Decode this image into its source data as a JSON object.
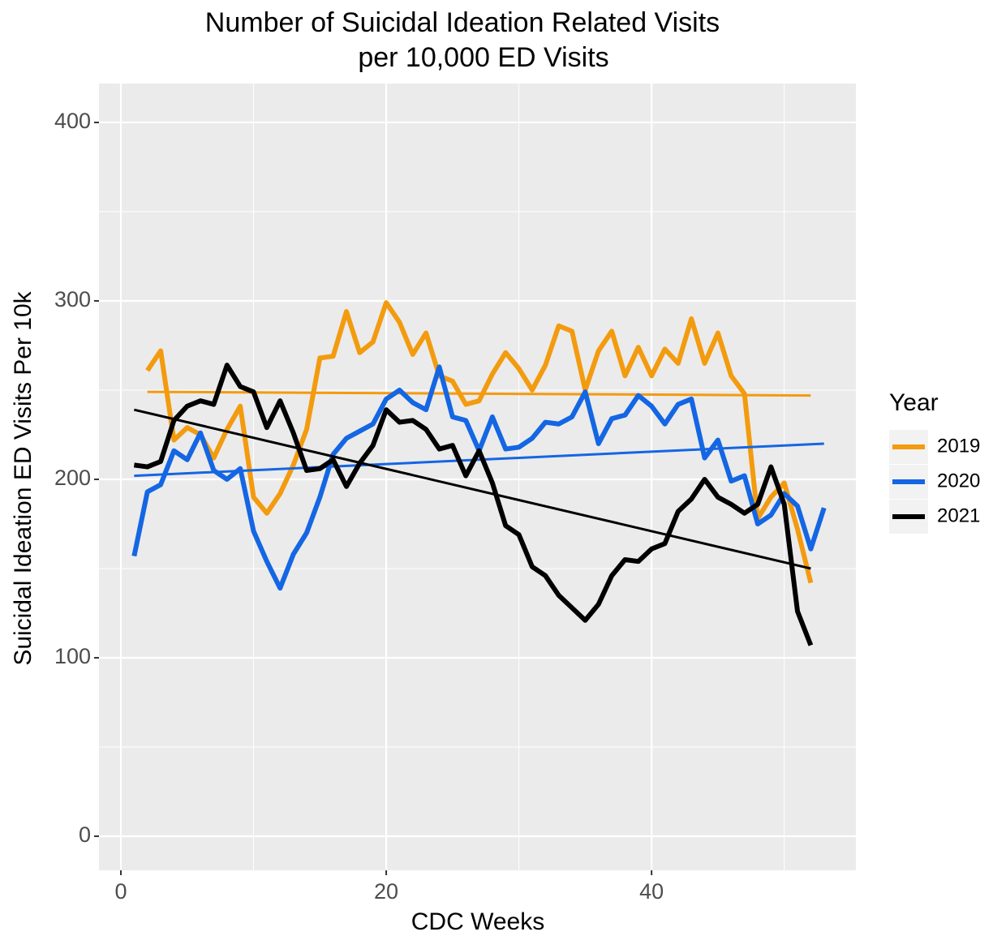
{
  "chart_data": {
    "type": "line",
    "title": [
      "Number of Suicidal Ideation Related Visits",
      "per 10,000 ED Visits"
    ],
    "x_label": "CDC Weeks",
    "y_label": "Suicidal Ideation ED Visits Per 10k",
    "legend_title": "Year",
    "legend_position": "right",
    "grid": true,
    "xlim": [
      -1.65,
      55.4
    ],
    "ylim": [
      -19.1,
      421.8
    ],
    "xticks": [
      0,
      20,
      40
    ],
    "yticks": [
      0,
      100,
      200,
      300,
      400
    ],
    "series": [
      {
        "name": "2019",
        "color": "#f39b0f",
        "x": [
          2,
          3,
          4,
          5,
          6,
          7,
          8,
          9,
          10,
          11,
          12,
          13,
          14,
          15,
          16,
          17,
          18,
          19,
          20,
          21,
          22,
          23,
          24,
          25,
          26,
          27,
          28,
          29,
          30,
          31,
          32,
          33,
          34,
          35,
          36,
          37,
          38,
          39,
          40,
          41,
          42,
          43,
          44,
          45,
          46,
          47,
          48,
          49,
          50,
          51,
          52
        ],
        "values": [
          261,
          272,
          222,
          229,
          225,
          212,
          228,
          241,
          190,
          181,
          192,
          208,
          228,
          268,
          269,
          294,
          271,
          277,
          299,
          288,
          270,
          282,
          258,
          255,
          242,
          244,
          259,
          271,
          262,
          250,
          264,
          286,
          283,
          250,
          272,
          283,
          258,
          274,
          258,
          273,
          265,
          290,
          265,
          282,
          258,
          248,
          178,
          190,
          198,
          172,
          142
        ],
        "trend": {
          "x": [
            2,
            52
          ],
          "values": [
            249,
            247
          ]
        }
      },
      {
        "name": "2020",
        "color": "#1466e3",
        "x": [
          1,
          2,
          3,
          4,
          5,
          6,
          7,
          8,
          9,
          10,
          11,
          12,
          13,
          14,
          15,
          16,
          17,
          18,
          19,
          20,
          21,
          22,
          23,
          24,
          25,
          26,
          27,
          28,
          29,
          30,
          31,
          32,
          33,
          34,
          35,
          36,
          37,
          38,
          39,
          40,
          41,
          42,
          43,
          44,
          45,
          46,
          47,
          48,
          49,
          50,
          51,
          52,
          53
        ],
        "values": [
          157,
          193,
          197,
          216,
          211,
          226,
          205,
          200,
          206,
          171,
          154,
          139,
          158,
          170,
          190,
          214,
          223,
          227,
          231,
          245,
          250,
          243,
          239,
          263,
          235,
          233,
          216,
          235,
          217,
          218,
          223,
          232,
          231,
          235,
          249,
          220,
          234,
          236,
          247,
          241,
          231,
          242,
          245,
          212,
          222,
          199,
          202,
          175,
          180,
          192,
          185,
          161,
          184
        ],
        "trend": {
          "x": [
            1,
            53
          ],
          "values": [
            202,
            220
          ]
        }
      },
      {
        "name": "2021",
        "color": "#000000",
        "x": [
          1,
          2,
          3,
          4,
          5,
          6,
          7,
          8,
          9,
          10,
          11,
          12,
          13,
          14,
          15,
          16,
          17,
          18,
          19,
          20,
          21,
          22,
          23,
          24,
          25,
          26,
          27,
          28,
          29,
          30,
          31,
          32,
          33,
          34,
          35,
          36,
          37,
          38,
          39,
          40,
          41,
          42,
          43,
          44,
          45,
          46,
          47,
          48,
          49,
          50,
          51,
          52
        ],
        "values": [
          208,
          207,
          210,
          233,
          241,
          244,
          242,
          264,
          252,
          249,
          229,
          244,
          226,
          205,
          206,
          211,
          196,
          209,
          219,
          239,
          232,
          233,
          228,
          217,
          219,
          202,
          216,
          198,
          174,
          169,
          151,
          146,
          135,
          128,
          121,
          130,
          146,
          155,
          154,
          161,
          164,
          182,
          189,
          200,
          190,
          186,
          181,
          186,
          207,
          186,
          126,
          107
        ],
        "trend": {
          "x": [
            1,
            52
          ],
          "values": [
            239,
            150
          ]
        }
      }
    ]
  }
}
